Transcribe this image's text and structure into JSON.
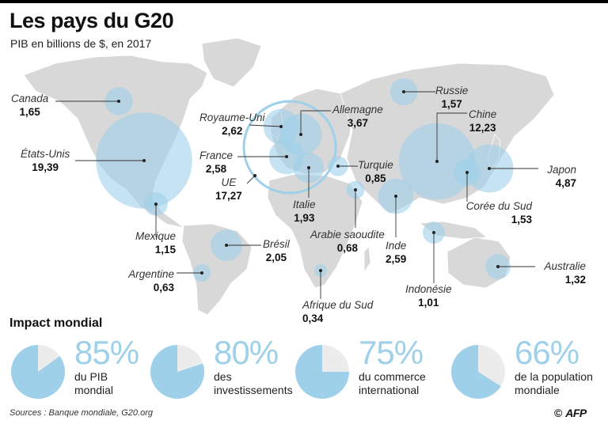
{
  "header": {
    "title": "Les pays du G20",
    "subtitle": "PIB en billions de $, en 2017"
  },
  "colors": {
    "bubble": "#9fd0ea",
    "land": "#d8d8d8",
    "pie_rest": "#ececec",
    "percent_text": "#9fd0ea"
  },
  "chart_data": [
    {
      "type": "bubble-map",
      "title": "Les pays du G20",
      "subtitle": "PIB en billions de $, en 2017",
      "unit": "billions de $",
      "points": [
        {
          "name": "Canada",
          "value": 1.65,
          "label": "1,65"
        },
        {
          "name": "États-Unis",
          "value": 19.39,
          "label": "19,39"
        },
        {
          "name": "Mexique",
          "value": 1.15,
          "label": "1,15"
        },
        {
          "name": "Brésil",
          "value": 2.05,
          "label": "2,05"
        },
        {
          "name": "Argentine",
          "value": 0.63,
          "label": "0,63"
        },
        {
          "name": "Royaume-Uni",
          "value": 2.62,
          "label": "2,62"
        },
        {
          "name": "France",
          "value": 2.58,
          "label": "2,58"
        },
        {
          "name": "UE",
          "value": 17.27,
          "label": "17,27"
        },
        {
          "name": "Allemagne",
          "value": 3.67,
          "label": "3,67"
        },
        {
          "name": "Italie",
          "value": 1.93,
          "label": "1,93"
        },
        {
          "name": "Turquie",
          "value": 0.85,
          "label": "0,85"
        },
        {
          "name": "Russie",
          "value": 1.57,
          "label": "1,57"
        },
        {
          "name": "Chine",
          "value": 12.23,
          "label": "12,23"
        },
        {
          "name": "Japon",
          "value": 4.87,
          "label": "4,87"
        },
        {
          "name": "Corée du Sud",
          "value": 1.53,
          "label": "1,53"
        },
        {
          "name": "Arabie saoudite",
          "value": 0.68,
          "label": "0,68"
        },
        {
          "name": "Inde",
          "value": 2.59,
          "label": "2,59"
        },
        {
          "name": "Indonésie",
          "value": 1.01,
          "label": "1,01"
        },
        {
          "name": "Australie",
          "value": 1.32,
          "label": "1,32"
        },
        {
          "name": "Afrique du Sud",
          "value": 0.34,
          "label": "0,34"
        }
      ]
    },
    {
      "type": "pie",
      "title": "Impact mondial",
      "series": [
        {
          "percent": 85,
          "label": "85%",
          "line1": "du PIB",
          "line2": "mondial"
        },
        {
          "percent": 80,
          "label": "80%",
          "line1": "des",
          "line2": "investissements"
        },
        {
          "percent": 75,
          "label": "75%",
          "line1": "du commerce",
          "line2": "international"
        },
        {
          "percent": 66,
          "label": "66%",
          "line1": "de la population",
          "line2": "mondiale"
        }
      ]
    }
  ],
  "footer": {
    "sources": "Sources : Banque mondiale, G20.org",
    "credit": "AFP"
  }
}
